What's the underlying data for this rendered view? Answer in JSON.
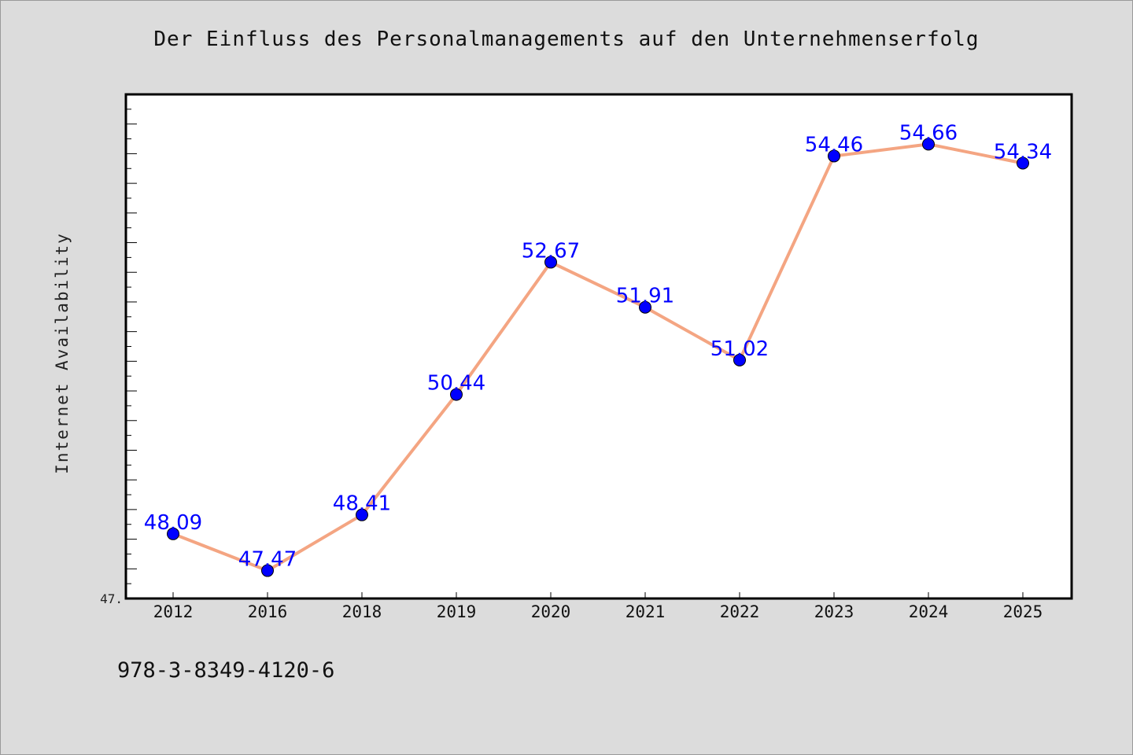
{
  "chart_data": {
    "type": "line",
    "title": "Der Einfluss des Personalmanagements auf den Unternehmenserfolg",
    "xlabel": "",
    "ylabel": "Internet Availability",
    "categories": [
      "2012",
      "2016",
      "2018",
      "2019",
      "2020",
      "2021",
      "2022",
      "2023",
      "2024",
      "2025"
    ],
    "series": [
      {
        "values": [
          48.09,
          47.47,
          48.41,
          50.44,
          52.67,
          51.91,
          51.02,
          54.46,
          54.66,
          54.34
        ]
      }
    ],
    "data_labels": [
      "48.09",
      "47.47",
      "48.41",
      "50.44",
      "52.67",
      "51.91",
      "51.02",
      "54.46",
      "54.66",
      "54.34"
    ],
    "y_tick_labels": [
      "47."
    ],
    "ylim": [
      47.0,
      55.5
    ],
    "grid": false,
    "line_color": "#f4a582",
    "marker_color": "#0000ff",
    "label_color": "#0000ff"
  },
  "footer": {
    "isbn": "978-3-8349-4120-6"
  }
}
